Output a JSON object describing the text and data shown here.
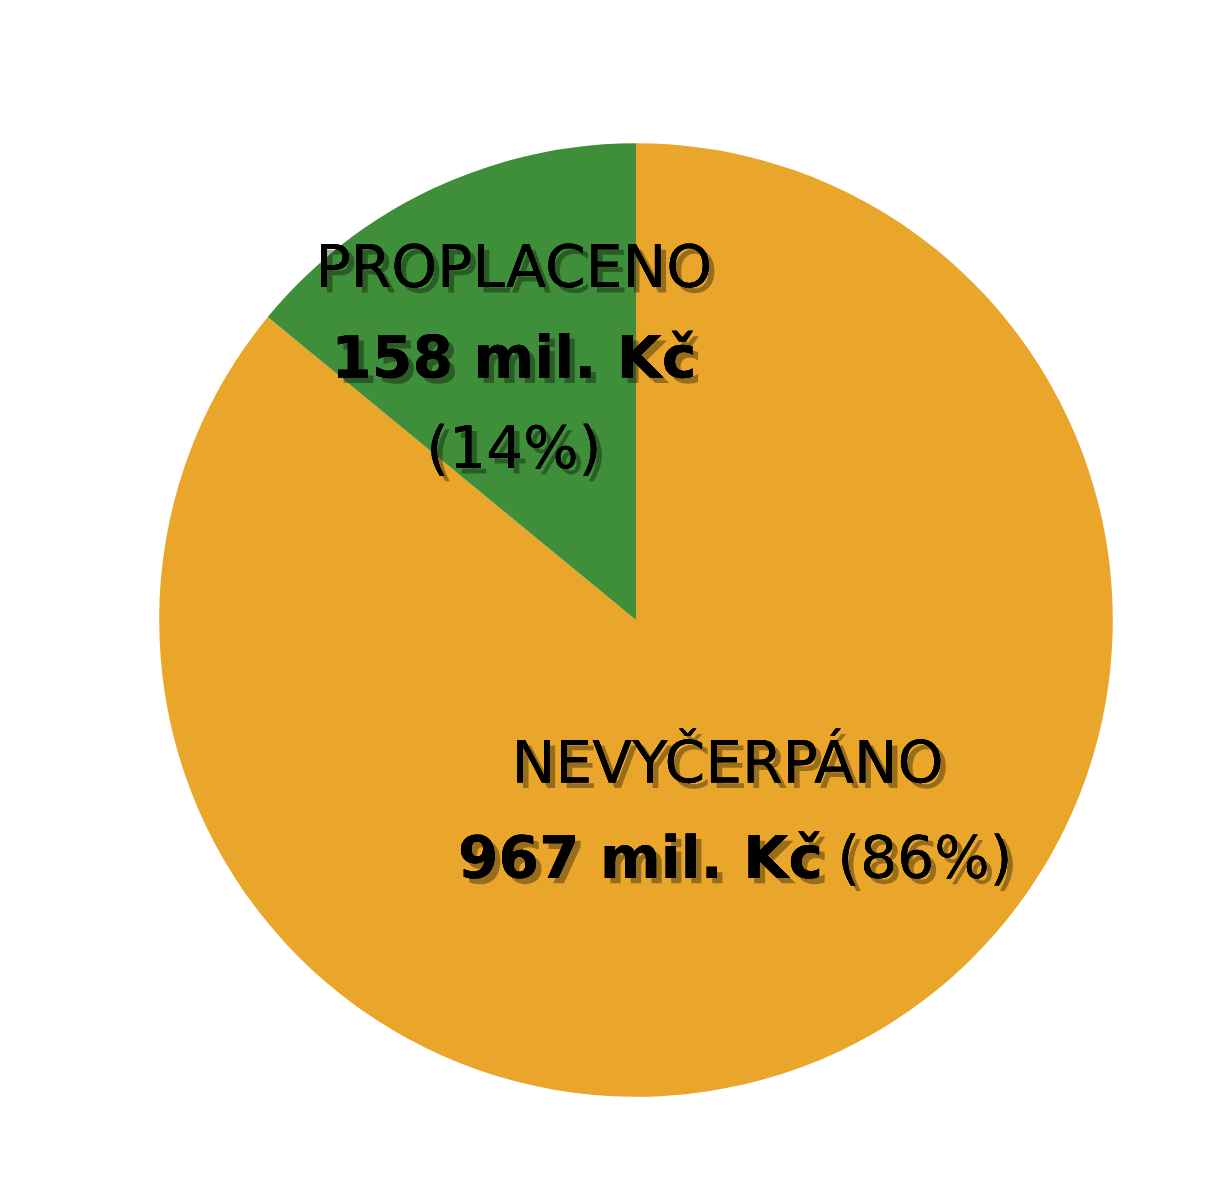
{
  "chart_data": {
    "type": "pie",
    "categories": [
      "NEVYČERPÁNO",
      "PROPLACENO"
    ],
    "values": [
      967,
      158
    ],
    "colors": [
      "#e9a62a",
      "#3f8f3a"
    ],
    "value_labels": [
      "967 mil. Kč",
      "158 mil. Kč"
    ],
    "annotations": [
      "(86%)",
      "(14%)"
    ]
  }
}
